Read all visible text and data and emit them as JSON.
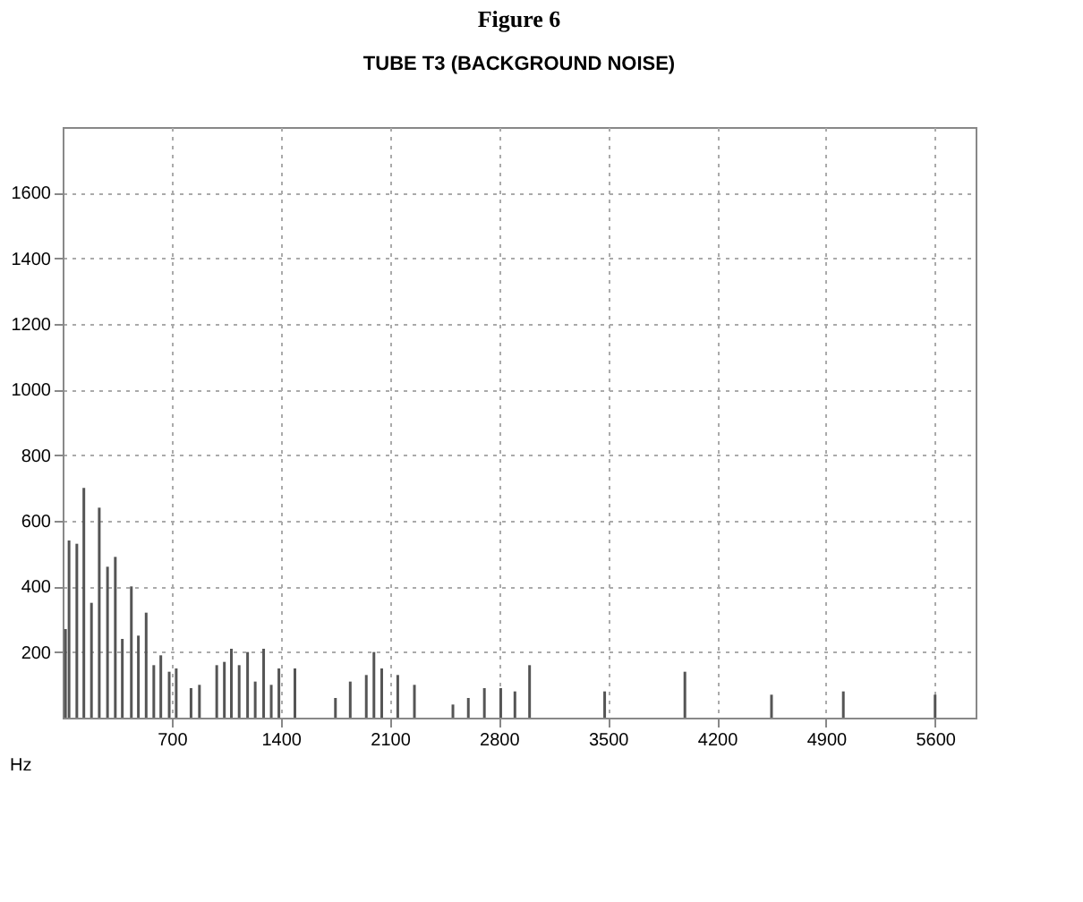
{
  "chart_data": {
    "type": "bar",
    "title": "Figure 6",
    "subtitle": "TUBE T3 (BACKGROUND NOISE)",
    "xlabel": "Hz",
    "x": [
      18,
      41,
      91,
      136,
      185,
      235,
      288,
      338,
      383,
      441,
      486,
      536,
      585,
      630,
      684,
      729,
      824,
      878,
      989,
      1038,
      1083,
      1133,
      1187,
      1236,
      1290,
      1339,
      1388,
      1491,
      1751,
      1846,
      1949,
      1998,
      2048,
      2151,
      2258,
      2505,
      2604,
      2707,
      2812,
      2903,
      2997,
      3479,
      3994,
      4550,
      5011,
      5600
    ],
    "series": [
      {
        "color": "#555555",
        "values": [
          270,
          540,
          530,
          700,
          350,
          640,
          460,
          490,
          240,
          400,
          250,
          320,
          160,
          190,
          140,
          150,
          90,
          100,
          160,
          170,
          210,
          160,
          200,
          110,
          210,
          100,
          150,
          150,
          60,
          110,
          130,
          200,
          150,
          130,
          100,
          40,
          60,
          90,
          90,
          80,
          160,
          80,
          140,
          70,
          80,
          70
        ]
      }
    ],
    "xlim": [
      0,
      5860
    ],
    "xticks": [
      700,
      1400,
      2100,
      2800,
      3500,
      4200,
      4900,
      5600
    ],
    "ylim": [
      0,
      1800
    ],
    "yticks": [
      200,
      400,
      600,
      800,
      1000,
      1200,
      1400,
      1600
    ],
    "grid": true
  }
}
